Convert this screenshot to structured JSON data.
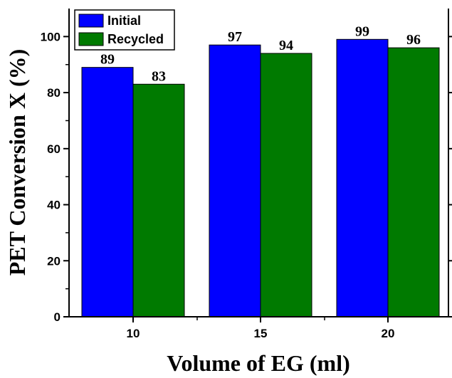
{
  "chart_data": {
    "type": "bar",
    "categories": [
      "10",
      "15",
      "20"
    ],
    "series": [
      {
        "name": "Initial",
        "values": [
          89,
          97,
          99
        ],
        "color": "#0000ff"
      },
      {
        "name": "Recycled",
        "values": [
          83,
          94,
          96
        ],
        "color": "#007a00"
      }
    ],
    "data_labels": [
      [
        "89",
        "97",
        "99"
      ],
      [
        "83",
        "94",
        "96"
      ]
    ],
    "xlabel": "Volume of EG (ml)",
    "ylabel": "PET Conversion X (%)",
    "ylim": [
      0,
      110
    ],
    "yticks": [
      0,
      20,
      40,
      60,
      80,
      100
    ],
    "yticks_labels": [
      "0",
      "20",
      "40",
      "60",
      "80",
      "100"
    ],
    "grid": false,
    "legend_position": "top-left"
  }
}
